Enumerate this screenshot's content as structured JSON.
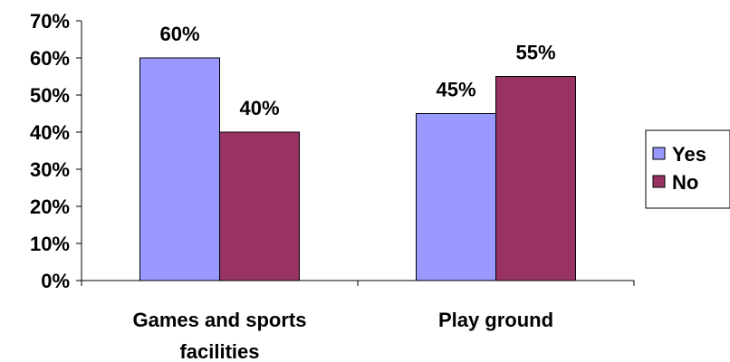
{
  "chart_data": {
    "type": "bar",
    "categories": [
      "Games and sports facilities",
      "Play ground"
    ],
    "category_lines": [
      [
        "Games and sports",
        "facilities"
      ],
      [
        "Play ground"
      ]
    ],
    "series": [
      {
        "name": "Yes",
        "values": [
          60,
          45
        ],
        "color": "#9999ff"
      },
      {
        "name": "No",
        "values": [
          40,
          55
        ],
        "color": "#993366"
      }
    ],
    "data_labels": [
      [
        "60%",
        "45%"
      ],
      [
        "40%",
        "55%"
      ]
    ],
    "ylim": [
      0,
      70
    ],
    "y_ticks": [
      0,
      10,
      20,
      30,
      40,
      50,
      60,
      70
    ],
    "y_tick_labels": [
      "0%",
      "10%",
      "20%",
      "30%",
      "40%",
      "50%",
      "60%",
      "70%"
    ],
    "title": "",
    "xlabel": "",
    "ylabel": "",
    "grid": false,
    "legend_position": "right"
  }
}
